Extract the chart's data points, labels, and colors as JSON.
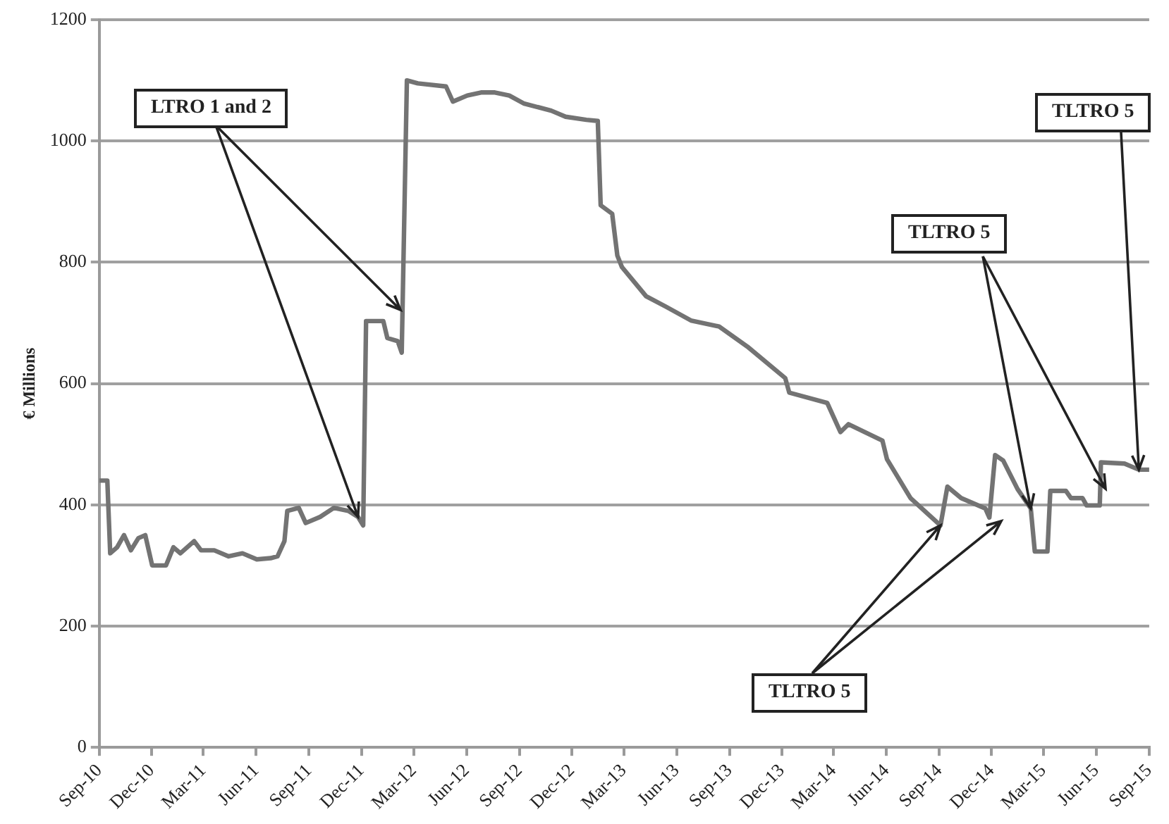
{
  "chart_data": {
    "type": "line",
    "ylabel": "€ Millions",
    "x": [
      "2010-09-01",
      "2010-09-15",
      "2010-09-20",
      "2010-10-02",
      "2010-10-14",
      "2010-10-26",
      "2010-11-08",
      "2010-11-20",
      "2010-12-02",
      "2010-12-26",
      "2011-01-08",
      "2011-01-20",
      "2011-02-13",
      "2011-02-25",
      "2011-03-20",
      "2011-04-14",
      "2011-05-08",
      "2011-06-02",
      "2011-06-26",
      "2011-07-08",
      "2011-07-20",
      "2011-07-25",
      "2011-08-14",
      "2011-08-26",
      "2011-09-20",
      "2011-10-14",
      "2011-11-08",
      "2011-11-25",
      "2011-12-04",
      "2011-12-09",
      "2012-01-08",
      "2012-01-15",
      "2012-02-02",
      "2012-02-09",
      "2012-02-18",
      "2012-03-08",
      "2012-04-26",
      "2012-05-08",
      "2012-06-02",
      "2012-06-26",
      "2012-07-20",
      "2012-08-14",
      "2012-09-08",
      "2012-10-26",
      "2012-11-20",
      "2012-12-26",
      "2013-01-15",
      "2013-01-20",
      "2013-02-09",
      "2013-02-18",
      "2013-02-26",
      "2013-04-09",
      "2013-05-13",
      "2013-06-26",
      "2013-08-14",
      "2013-10-02",
      "2013-12-07",
      "2013-12-14",
      "2014-02-18",
      "2014-03-13",
      "2014-03-27",
      "2014-05-25",
      "2014-06-02",
      "2014-07-13",
      "2014-09-03",
      "2014-09-15",
      "2014-10-09",
      "2014-11-20",
      "2014-11-27",
      "2014-12-07",
      "2014-12-21",
      "2015-01-15",
      "2015-02-07",
      "2015-02-14",
      "2015-03-08",
      "2015-03-13",
      "2015-04-09",
      "2015-04-18",
      "2015-05-08",
      "2015-05-15",
      "2015-06-07",
      "2015-06-09",
      "2015-07-20",
      "2015-08-14",
      "2015-09-01"
    ],
    "series": [
      {
        "color": "#737373",
        "values": [
          440,
          440,
          320,
          330,
          350,
          325,
          345,
          350,
          300,
          300,
          330,
          320,
          340,
          325,
          325,
          315,
          320,
          310,
          312,
          315,
          340,
          390,
          395,
          370,
          380,
          395,
          390,
          380,
          366,
          703,
          703,
          675,
          670,
          651,
          1100,
          1095,
          1090,
          1065,
          1075,
          1080,
          1080,
          1075,
          1062,
          1050,
          1040,
          1035,
          1033,
          894,
          880,
          811,
          792,
          744,
          727,
          704,
          694,
          661,
          609,
          585,
          568,
          520,
          533,
          506,
          475,
          411,
          366,
          430,
          411,
          394,
          379,
          482,
          473,
          426,
          394,
          323,
          323,
          423,
          423,
          411,
          411,
          399,
          399,
          470,
          468,
          458,
          458
        ]
      }
    ],
    "xlim": [
      "2010-09-01",
      "2015-09-01"
    ],
    "xticks": [
      {
        "value": "2010-09-01",
        "label": "Sep-10"
      },
      {
        "value": "2010-12-01",
        "label": "Dec-10"
      },
      {
        "value": "2011-03-01",
        "label": "Mar-11"
      },
      {
        "value": "2011-06-01",
        "label": "Jun-11"
      },
      {
        "value": "2011-09-01",
        "label": "Sep-11"
      },
      {
        "value": "2011-12-01",
        "label": "Dec-11"
      },
      {
        "value": "2012-03-01",
        "label": "Mar-12"
      },
      {
        "value": "2012-06-01",
        "label": "Jun-12"
      },
      {
        "value": "2012-09-01",
        "label": "Sep-12"
      },
      {
        "value": "2012-12-01",
        "label": "Dec-12"
      },
      {
        "value": "2013-03-01",
        "label": "Mar-13"
      },
      {
        "value": "2013-06-01",
        "label": "Jun-13"
      },
      {
        "value": "2013-09-01",
        "label": "Sep-13"
      },
      {
        "value": "2013-12-01",
        "label": "Dec-13"
      },
      {
        "value": "2014-03-01",
        "label": "Mar-14"
      },
      {
        "value": "2014-06-01",
        "label": "Jun-14"
      },
      {
        "value": "2014-09-01",
        "label": "Sep-14"
      },
      {
        "value": "2014-12-01",
        "label": "Dec-14"
      },
      {
        "value": "2015-03-01",
        "label": "Mar-15"
      },
      {
        "value": "2015-06-01",
        "label": "Jun-15"
      },
      {
        "value": "2015-09-01",
        "label": "Sep-15"
      }
    ],
    "ylim": [
      0,
      1200
    ],
    "yticks": [
      0,
      200,
      400,
      600,
      800,
      1000,
      1200
    ],
    "grid": "y",
    "legend": false,
    "marker": "none",
    "line_style": "solid",
    "annotations": [
      {
        "text": "LTRO 1 and 2",
        "x": "2011-11-25",
        "y": 380
      },
      {
        "text": "TLTRO 5",
        "x": "2015-02-07",
        "y": 394
      },
      {
        "text": "TLTRO 5",
        "x": "2015-08-14",
        "y": 458
      },
      {
        "text": "TLTRO 5",
        "x": "2014-09-03",
        "y": 366
      }
    ]
  }
}
